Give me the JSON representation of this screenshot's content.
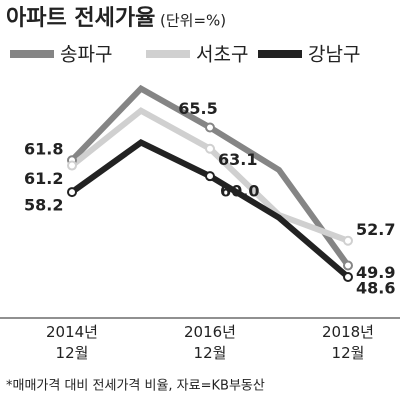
{
  "chart_data": {
    "type": "line",
    "title": "아파트 전세가율",
    "subtitle": "(단위=%)",
    "categories": [
      "2014년 12월",
      null,
      "2016년 12월",
      null,
      "2018년 12월"
    ],
    "series": [
      {
        "name": "송파구",
        "color": "#858585",
        "values": [
          61.8,
          69.9,
          65.5,
          60.7,
          49.9
        ],
        "value_labels": [
          "61.8",
          null,
          "65.5",
          null,
          "49.9"
        ]
      },
      {
        "name": "서초구",
        "color": "#d0d0d0",
        "values": [
          61.2,
          67.4,
          63.1,
          55.6,
          52.7
        ],
        "value_labels": [
          "61.2",
          null,
          "63.1",
          null,
          "52.7"
        ]
      },
      {
        "name": "강남구",
        "color": "#222222",
        "values": [
          58.2,
          63.8,
          60.0,
          55.3,
          48.6
        ],
        "value_labels": [
          "58.2",
          null,
          "60.0",
          null,
          "48.6"
        ]
      }
    ],
    "ylim": [
      46,
      72
    ],
    "footnote": "*매매가격 대비 전세가격 비율, 자료=KB부동산"
  }
}
